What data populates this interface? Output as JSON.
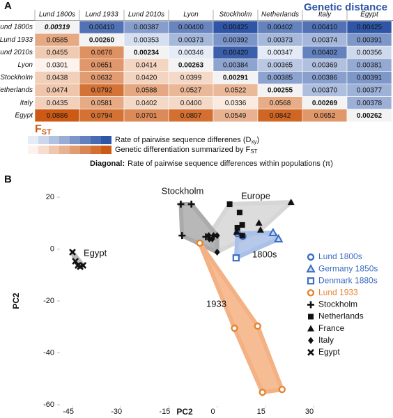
{
  "chart_data": [
    {
      "type": "heatmap",
      "panel": "A",
      "title": "Genetic distance",
      "lower_title": "F",
      "lower_title_sub": "ST",
      "categories": [
        "Lund 1800s",
        "Lund 1933",
        "Lund 2010s",
        "Lyon",
        "Stockholm",
        "Netherlands",
        "Italy",
        "Egypt"
      ],
      "values": [
        [
          0.00319,
          0.0041,
          0.00387,
          0.004,
          0.00425,
          0.00402,
          0.0041,
          0.00425
        ],
        [
          0.0585,
          0.0026,
          0.00353,
          0.00373,
          0.00392,
          0.00373,
          0.00374,
          0.00391
        ],
        [
          0.0455,
          0.0676,
          0.00234,
          0.00346,
          0.0042,
          0.00347,
          0.00402,
          0.00356
        ],
        [
          0.0301,
          0.0651,
          0.0414,
          0.00263,
          0.00384,
          0.00365,
          0.00369,
          0.00381
        ],
        [
          0.0438,
          0.0632,
          0.042,
          0.0399,
          0.00291,
          0.00385,
          0.00386,
          0.00391
        ],
        [
          0.0474,
          0.0792,
          0.0588,
          0.0527,
          0.0522,
          0.00255,
          0.0037,
          0.00377
        ],
        [
          0.0435,
          0.0581,
          0.0402,
          0.04,
          0.0336,
          0.0568,
          0.00269,
          0.00378
        ],
        [
          0.0886,
          0.0794,
          0.0701,
          0.0807,
          0.0549,
          0.0842,
          0.0652,
          0.00262
        ]
      ],
      "value_labels": [
        [
          "0.00319",
          "0.00410",
          "0.00387",
          "0.00400",
          "0.00425",
          "0.00402",
          "0.00410",
          "0.00425"
        ],
        [
          "0.0585",
          "0.00260",
          "0.00353",
          "0.00373",
          "0.00392",
          "0.00373",
          "0.00374",
          "0.00391"
        ],
        [
          "0.0455",
          "0.0676",
          "0.00234",
          "0.00346",
          "0.00420",
          "0.00347",
          "0.00402",
          "0.00356"
        ],
        [
          "0.0301",
          "0.0651",
          "0.0414",
          "0.00263",
          "0.00384",
          "0.00365",
          "0.00369",
          "0.00381"
        ],
        [
          "0.0438",
          "0.0632",
          "0.0420",
          "0.0399",
          "0.00291",
          "0.00385",
          "0.00386",
          "0.00391"
        ],
        [
          "0.0474",
          "0.0792",
          "0.0588",
          "0.0527",
          "0.0522",
          "0.00255",
          "0.00370",
          "0.00377"
        ],
        [
          "0.0435",
          "0.0581",
          "0.0402",
          "0.0400",
          "0.0336",
          "0.0568",
          "0.00269",
          "0.00378"
        ],
        [
          "0.0886",
          "0.0794",
          "0.0701",
          "0.0807",
          "0.0549",
          "0.0842",
          "0.0652",
          "0.00262"
        ]
      ],
      "upper_color": "#2f56a6",
      "lower_color": "#cc5a14",
      "legend": [
        {
          "text": "Rate of pairwise sequence differenes (D",
          "sub": "xy",
          "end": ")"
        },
        {
          "text": "Genetic differentiation summarized by F",
          "sub": "ST",
          "end": ""
        }
      ],
      "note_label": "Diagonal:",
      "note": "Rate of pairwise sequence differences within populations (π)"
    },
    {
      "type": "scatter",
      "panel": "B",
      "xlabel": "PC2",
      "ylabel": "PC2",
      "xlim": [
        -45,
        30
      ],
      "xticks": [
        -45,
        -30,
        -15,
        0,
        15,
        30
      ],
      "ylim": [
        -60,
        20
      ],
      "yticks": [
        20,
        0,
        -20,
        -40,
        -60
      ],
      "series": [
        {
          "name": "Lund 1800s",
          "color": "#3a6cc4",
          "marker": "circle-open",
          "x": [
            6.3,
            8.0
          ],
          "y": [
            6.0,
            4.9
          ]
        },
        {
          "name": "Germany 1850s",
          "color": "#3a6cc4",
          "marker": "triangle-open",
          "x": [
            17.4,
            19.1
          ],
          "y": [
            6.3,
            3.9
          ]
        },
        {
          "name": "Denmark 1880s",
          "color": "#3a6cc4",
          "marker": "square-open",
          "x": [
            5.9
          ],
          "y": [
            -3.4
          ]
        },
        {
          "name": "Lund 1933",
          "color": "#e6842e",
          "marker": "circle-open",
          "x": [
            -5.4,
            5.4,
            12.6,
            14.1,
            20.2
          ],
          "y": [
            2.3,
            -30.5,
            -29.7,
            -55.2,
            -54.1
          ]
        },
        {
          "name": "Stockholm",
          "color": "#111111",
          "marker": "cross",
          "x": [
            -11.3,
            -8.0,
            -10.9,
            -3.5
          ],
          "y": [
            17.3,
            17.3,
            5.2,
            4.7
          ]
        },
        {
          "name": "Netherlands",
          "color": "#111111",
          "marker": "square",
          "x": [
            3.9,
            7.0,
            7.8,
            6.3,
            7.8
          ],
          "y": [
            17.3,
            14.1,
            9.3,
            8.2,
            5.2
          ]
        },
        {
          "name": "France",
          "color": "#111111",
          "marker": "triangle",
          "x": [
            23.0,
            13.0,
            13.5,
            6.1
          ],
          "y": [
            18.1,
            10.1,
            7.4,
            6.6
          ]
        },
        {
          "name": "Italy",
          "color": "#111111",
          "marker": "diamond",
          "x": [
            -2.6,
            -1.5,
            -1.1,
            0.0,
            -2.4,
            0.0
          ],
          "y": [
            5.2,
            3.9,
            5.2,
            5.2,
            3.9,
            -1.2
          ]
        },
        {
          "name": "Egypt",
          "color": "#111111",
          "marker": "x",
          "x": [
            -45.0,
            -44.1,
            -43.3,
            -42.6,
            -41.7
          ],
          "y": [
            -1.2,
            -4.7,
            -6.3,
            -6.8,
            -6.3
          ]
        }
      ],
      "hulls": [
        {
          "label": "Europe",
          "color": "#d6d6d6",
          "series": [
            "Netherlands",
            "France",
            "Italy"
          ]
        },
        {
          "label": "Stockholm",
          "color": "#ababab",
          "series": [
            "Stockholm",
            "Italy"
          ]
        },
        {
          "label": "1800s",
          "color": "#a9c0e8",
          "series": [
            "Lund 1800s",
            "Germany 1850s",
            "Denmark 1880s"
          ]
        },
        {
          "label": "1933",
          "color": "#f4b183",
          "series": [
            "Lund 1933"
          ]
        },
        {
          "label": "Egypt",
          "color": "#bbbbbb",
          "series": [
            "Egypt"
          ]
        }
      ]
    }
  ]
}
